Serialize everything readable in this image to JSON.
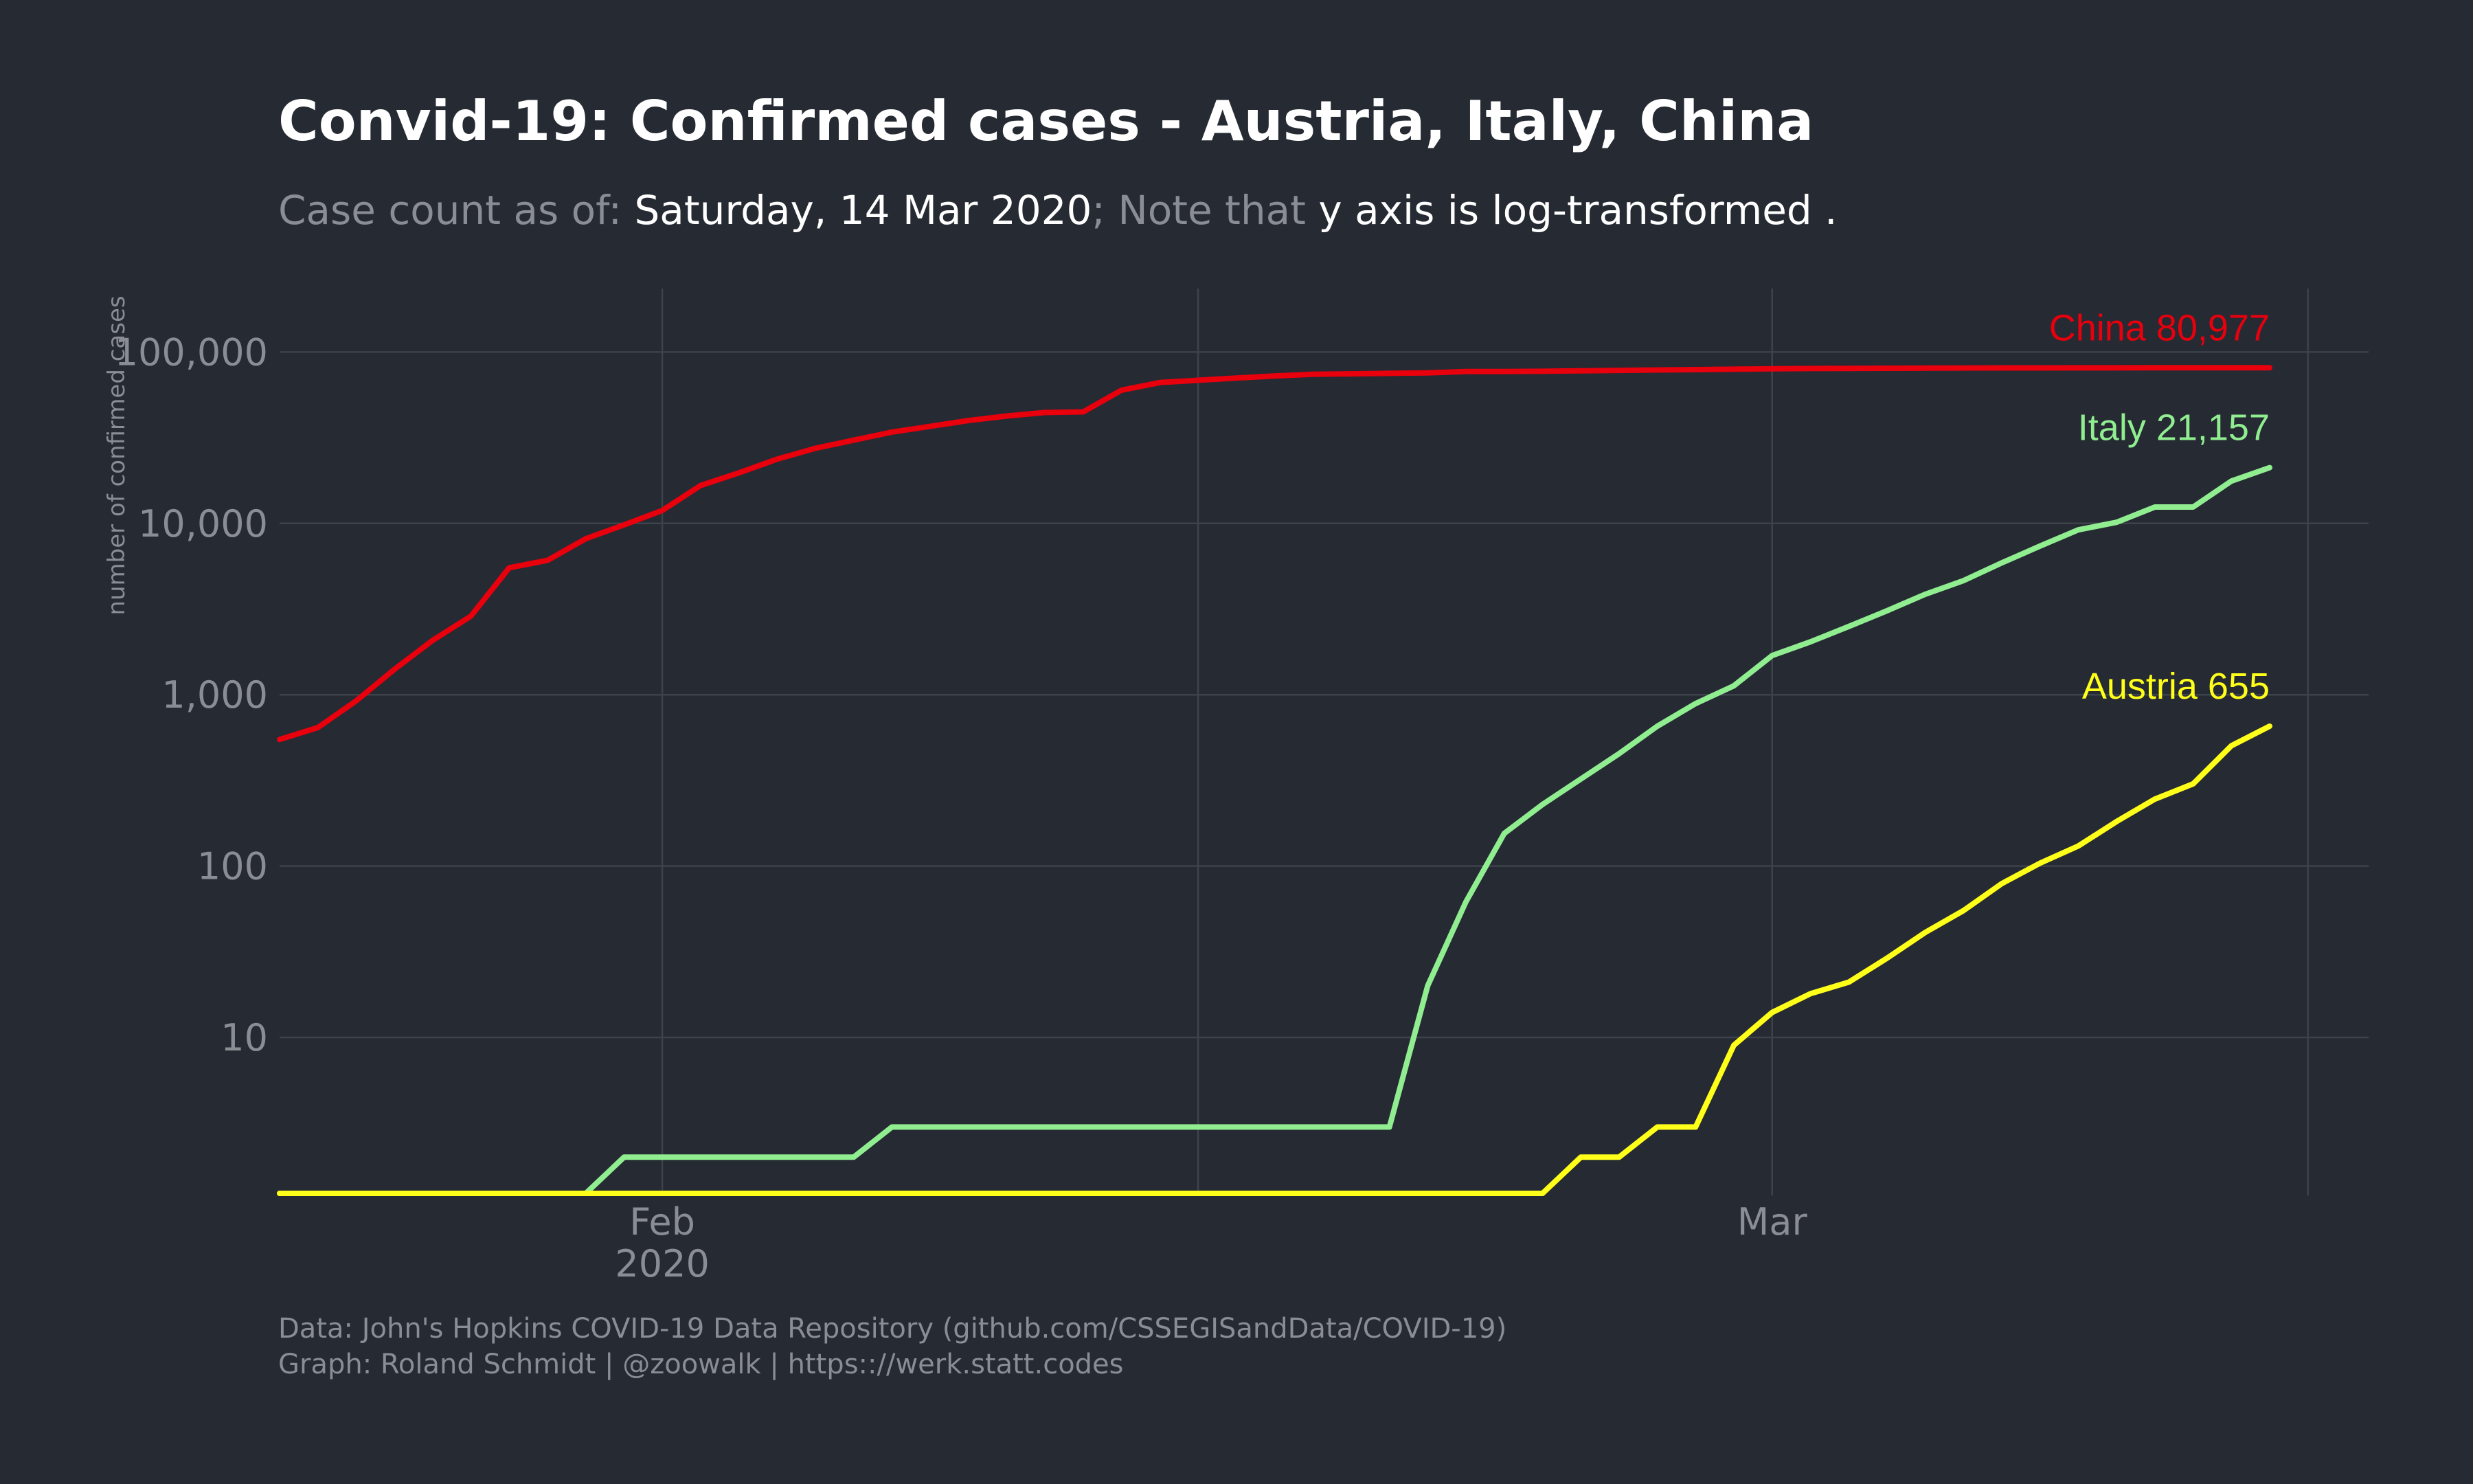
{
  "title": "Convid-19: Confirmed cases - Austria, Italy, China",
  "subtitle": {
    "prefix": "Case count as of: ",
    "date": "Saturday, 14 Mar 2020",
    "mid": "; Note that ",
    "note": "y axis is log-transformed",
    "end": " ."
  },
  "caption": {
    "line1": "Data: John's Hopkins  COVID-19 Data Repository (github.com/CSSEGISandData/COVID-19)",
    "line2": "Graph: Roland Schmidt | @zoowalk | https:://werk.statt.codes"
  },
  "chart_data": {
    "type": "line",
    "title": "Convid-19: Confirmed cases - Austria, Italy, China",
    "xlabel": "",
    "ylabel": "number of confirmed cases",
    "y_scale": "log10",
    "x_range": [
      "2020-01-22",
      "2020-03-14"
    ],
    "ylim": [
      1,
      240000
    ],
    "grid": true,
    "legend": "none (series labelled at line ends)",
    "y_ticks": [
      {
        "value": 10,
        "label": "10"
      },
      {
        "value": 100,
        "label": "100"
      },
      {
        "value": 1000,
        "label": "1,000"
      },
      {
        "value": 10000,
        "label": "10,000"
      },
      {
        "value": 100000,
        "label": "100,000"
      }
    ],
    "x_ticks": [
      {
        "date": "2020-02-01",
        "label": "Feb",
        "sublabel": "2020"
      },
      {
        "date": "2020-03-01",
        "label": "Mar",
        "sublabel": ""
      }
    ],
    "x": [
      "2020-01-22",
      "2020-01-23",
      "2020-01-24",
      "2020-01-25",
      "2020-01-26",
      "2020-01-27",
      "2020-01-28",
      "2020-01-29",
      "2020-01-30",
      "2020-01-31",
      "2020-02-01",
      "2020-02-02",
      "2020-02-03",
      "2020-02-04",
      "2020-02-05",
      "2020-02-06",
      "2020-02-07",
      "2020-02-08",
      "2020-02-09",
      "2020-02-10",
      "2020-02-11",
      "2020-02-12",
      "2020-02-13",
      "2020-02-14",
      "2020-02-15",
      "2020-02-16",
      "2020-02-17",
      "2020-02-18",
      "2020-02-19",
      "2020-02-20",
      "2020-02-21",
      "2020-02-22",
      "2020-02-23",
      "2020-02-24",
      "2020-02-25",
      "2020-02-26",
      "2020-02-27",
      "2020-02-28",
      "2020-02-29",
      "2020-03-01",
      "2020-03-02",
      "2020-03-03",
      "2020-03-04",
      "2020-03-05",
      "2020-03-06",
      "2020-03-07",
      "2020-03-08",
      "2020-03-09",
      "2020-03-10",
      "2020-03-11",
      "2020-03-12",
      "2020-03-13",
      "2020-03-14"
    ],
    "series": [
      {
        "name": "China",
        "label": "China 80,977",
        "color": "#e8000d",
        "values": [
          548,
          643,
          920,
          1406,
          2075,
          2877,
          5509,
          6087,
          8141,
          9802,
          11891,
          16630,
          19716,
          23707,
          27440,
          30587,
          34110,
          36814,
          39829,
          42354,
          44386,
          44759,
          59895,
          66358,
          68413,
          70513,
          72434,
          74211,
          74619,
          75077,
          75550,
          77001,
          77022,
          77241,
          77754,
          78166,
          78600,
          78928,
          79356,
          79932,
          80136,
          80261,
          80386,
          80537,
          80690,
          80770,
          80823,
          80860,
          80887,
          80921,
          80932,
          80945,
          80977
        ]
      },
      {
        "name": "Italy",
        "label": "Italy 21,157",
        "color": "#90ee90",
        "values": [
          0,
          0,
          0,
          0,
          0,
          0,
          0,
          0,
          0,
          2,
          2,
          2,
          2,
          2,
          2,
          2,
          3,
          3,
          3,
          3,
          3,
          3,
          3,
          3,
          3,
          3,
          3,
          3,
          3,
          3,
          20,
          62,
          155,
          229,
          322,
          453,
          655,
          888,
          1128,
          1694,
          2036,
          2502,
          3089,
          3858,
          4636,
          5883,
          7375,
          9172,
          10149,
          12462,
          12462,
          17660,
          21157
        ]
      },
      {
        "name": "Austria",
        "label": "Austria 655",
        "color": "#ffff1a",
        "values": [
          0,
          0,
          0,
          0,
          0,
          0,
          0,
          0,
          0,
          0,
          0,
          0,
          0,
          0,
          0,
          0,
          0,
          0,
          0,
          0,
          0,
          0,
          0,
          0,
          0,
          0,
          0,
          0,
          0,
          0,
          0,
          0,
          0,
          0,
          2,
          2,
          3,
          3,
          9,
          14,
          18,
          21,
          29,
          41,
          55,
          79,
          104,
          131,
          182,
          246,
          302,
          504,
          655
        ]
      }
    ]
  }
}
